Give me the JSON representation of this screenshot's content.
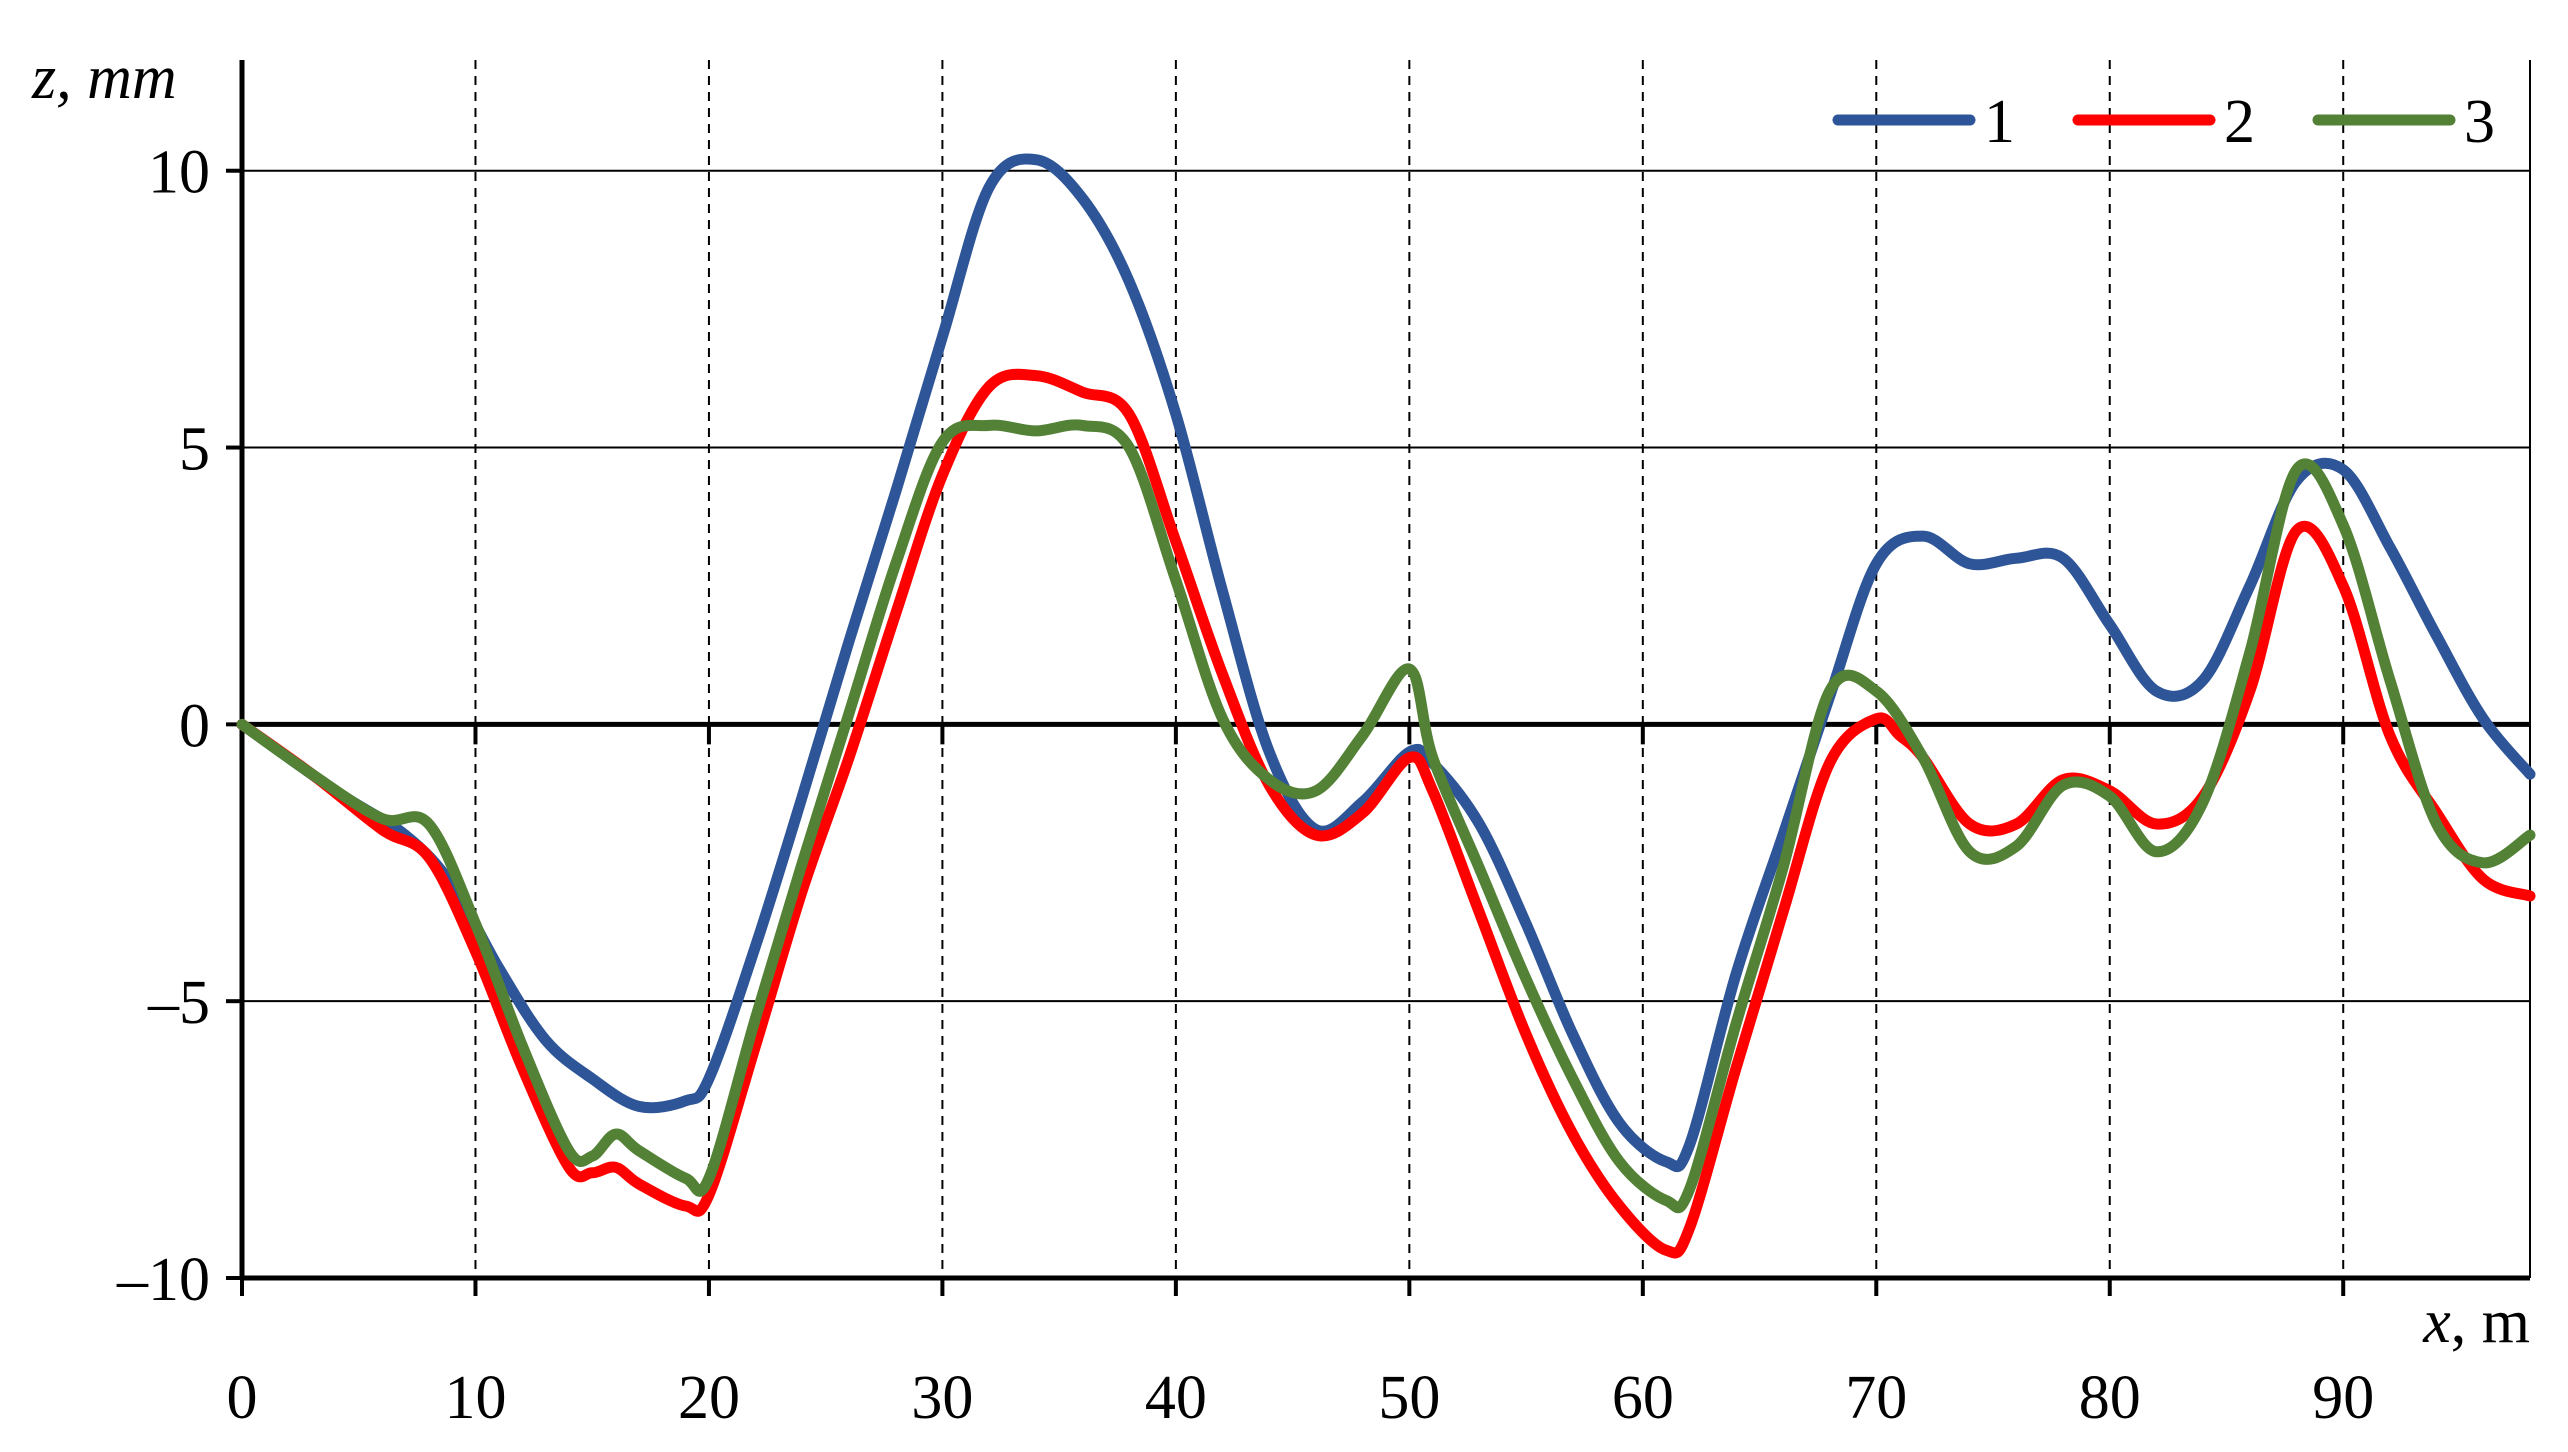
{
  "chart_data": {
    "type": "line",
    "xlabel": {
      "var": "x",
      "unit": ", m"
    },
    "ylabel": {
      "var": "z, mm",
      "unit": ""
    },
    "xlim": [
      0,
      98
    ],
    "ylim": [
      -10,
      12
    ],
    "x_ticks": [
      0,
      10,
      20,
      30,
      40,
      50,
      60,
      70,
      80,
      90
    ],
    "x_tick_labels": [
      "0",
      "10",
      "20",
      "30",
      "40",
      "50",
      "60",
      "70",
      "80",
      "90"
    ],
    "y_ticks": [
      10,
      5,
      0,
      -5,
      -10
    ],
    "y_tick_labels": [
      "10",
      "5",
      "0",
      "–5",
      "–10"
    ],
    "vertical_grid": "dashed",
    "horizontal_grid": "solid",
    "legend_position": "top-right",
    "series": [
      {
        "name": "1",
        "color": "#2e5597",
        "points": [
          [
            0,
            0
          ],
          [
            4,
            -1.2
          ],
          [
            7,
            -2.0
          ],
          [
            9,
            -2.9
          ],
          [
            11,
            -4.4
          ],
          [
            13,
            -5.7
          ],
          [
            15,
            -6.4
          ],
          [
            17,
            -6.9
          ],
          [
            19,
            -6.8
          ],
          [
            20,
            -6.4
          ],
          [
            22,
            -4.0
          ],
          [
            24,
            -1.3
          ],
          [
            26,
            1.5
          ],
          [
            28,
            4.2
          ],
          [
            30,
            7.0
          ],
          [
            32,
            9.7
          ],
          [
            34,
            10.2
          ],
          [
            36,
            9.5
          ],
          [
            38,
            8.0
          ],
          [
            40,
            5.6
          ],
          [
            42,
            2.4
          ],
          [
            44,
            -0.5
          ],
          [
            46,
            -1.9
          ],
          [
            48,
            -1.4
          ],
          [
            50,
            -0.5
          ],
          [
            51,
            -0.7
          ],
          [
            53,
            -1.8
          ],
          [
            55,
            -3.6
          ],
          [
            57,
            -5.6
          ],
          [
            59,
            -7.2
          ],
          [
            61,
            -7.9
          ],
          [
            62,
            -7.6
          ],
          [
            64,
            -4.5
          ],
          [
            66,
            -2.0
          ],
          [
            68,
            0.5
          ],
          [
            70,
            2.9
          ],
          [
            72,
            3.4
          ],
          [
            74,
            2.9
          ],
          [
            76,
            3.0
          ],
          [
            78,
            3.0
          ],
          [
            80,
            1.8
          ],
          [
            82,
            0.6
          ],
          [
            84,
            0.8
          ],
          [
            86,
            2.5
          ],
          [
            88,
            4.4
          ],
          [
            90,
            4.6
          ],
          [
            92,
            3.2
          ],
          [
            94,
            1.6
          ],
          [
            96,
            0.1
          ],
          [
            98,
            -0.9
          ]
        ]
      },
      {
        "name": "2",
        "color": "#ff0000",
        "points": [
          [
            0,
            0
          ],
          [
            3,
            -0.9
          ],
          [
            6,
            -1.9
          ],
          [
            8,
            -2.4
          ],
          [
            10,
            -4.1
          ],
          [
            12,
            -6.2
          ],
          [
            14,
            -8.0
          ],
          [
            15,
            -8.1
          ],
          [
            16,
            -8.0
          ],
          [
            17,
            -8.3
          ],
          [
            19,
            -8.7
          ],
          [
            20,
            -8.5
          ],
          [
            22,
            -5.8
          ],
          [
            24,
            -3.0
          ],
          [
            26,
            -0.6
          ],
          [
            28,
            2.0
          ],
          [
            30,
            4.5
          ],
          [
            32,
            6.1
          ],
          [
            34,
            6.3
          ],
          [
            36,
            6.0
          ],
          [
            38,
            5.6
          ],
          [
            40,
            3.3
          ],
          [
            42,
            0.9
          ],
          [
            44,
            -1.1
          ],
          [
            46,
            -2.0
          ],
          [
            48,
            -1.6
          ],
          [
            50,
            -0.6
          ],
          [
            51,
            -1.2
          ],
          [
            53,
            -3.4
          ],
          [
            55,
            -5.6
          ],
          [
            57,
            -7.4
          ],
          [
            59,
            -8.7
          ],
          [
            61,
            -9.5
          ],
          [
            62,
            -9.1
          ],
          [
            64,
            -6.2
          ],
          [
            66,
            -3.4
          ],
          [
            68,
            -0.7
          ],
          [
            70,
            0.1
          ],
          [
            71,
            -0.2
          ],
          [
            72,
            -0.6
          ],
          [
            74,
            -1.8
          ],
          [
            76,
            -1.8
          ],
          [
            78,
            -1.0
          ],
          [
            80,
            -1.2
          ],
          [
            82,
            -1.8
          ],
          [
            84,
            -1.3
          ],
          [
            86,
            0.6
          ],
          [
            88,
            3.5
          ],
          [
            90,
            2.5
          ],
          [
            92,
            -0.2
          ],
          [
            94,
            -1.6
          ],
          [
            96,
            -2.8
          ],
          [
            98,
            -3.1
          ]
        ]
      },
      {
        "name": "3",
        "color": "#538135",
        "points": [
          [
            0,
            0
          ],
          [
            3,
            -0.9
          ],
          [
            6,
            -1.7
          ],
          [
            8,
            -1.8
          ],
          [
            10,
            -3.6
          ],
          [
            12,
            -5.8
          ],
          [
            14,
            -7.7
          ],
          [
            15,
            -7.8
          ],
          [
            16,
            -7.4
          ],
          [
            17,
            -7.7
          ],
          [
            19,
            -8.2
          ],
          [
            20,
            -8.2
          ],
          [
            22,
            -5.3
          ],
          [
            24,
            -2.5
          ],
          [
            26,
            0.2
          ],
          [
            28,
            2.9
          ],
          [
            30,
            5.1
          ],
          [
            32,
            5.4
          ],
          [
            34,
            5.3
          ],
          [
            36,
            5.4
          ],
          [
            38,
            5.0
          ],
          [
            40,
            2.6
          ],
          [
            42,
            0.1
          ],
          [
            44,
            -1.0
          ],
          [
            46,
            -1.2
          ],
          [
            48,
            -0.2
          ],
          [
            50,
            1.0
          ],
          [
            51,
            -0.6
          ],
          [
            53,
            -2.6
          ],
          [
            55,
            -4.6
          ],
          [
            57,
            -6.4
          ],
          [
            59,
            -7.9
          ],
          [
            61,
            -8.6
          ],
          [
            62,
            -8.4
          ],
          [
            64,
            -5.4
          ],
          [
            66,
            -2.6
          ],
          [
            68,
            0.6
          ],
          [
            70,
            0.6
          ],
          [
            72,
            -0.6
          ],
          [
            74,
            -2.3
          ],
          [
            76,
            -2.2
          ],
          [
            78,
            -1.1
          ],
          [
            80,
            -1.3
          ],
          [
            82,
            -2.3
          ],
          [
            84,
            -1.4
          ],
          [
            86,
            1.3
          ],
          [
            88,
            4.6
          ],
          [
            90,
            3.6
          ],
          [
            92,
            0.8
          ],
          [
            94,
            -1.8
          ],
          [
            96,
            -2.5
          ],
          [
            98,
            -2.0
          ]
        ]
      }
    ]
  }
}
